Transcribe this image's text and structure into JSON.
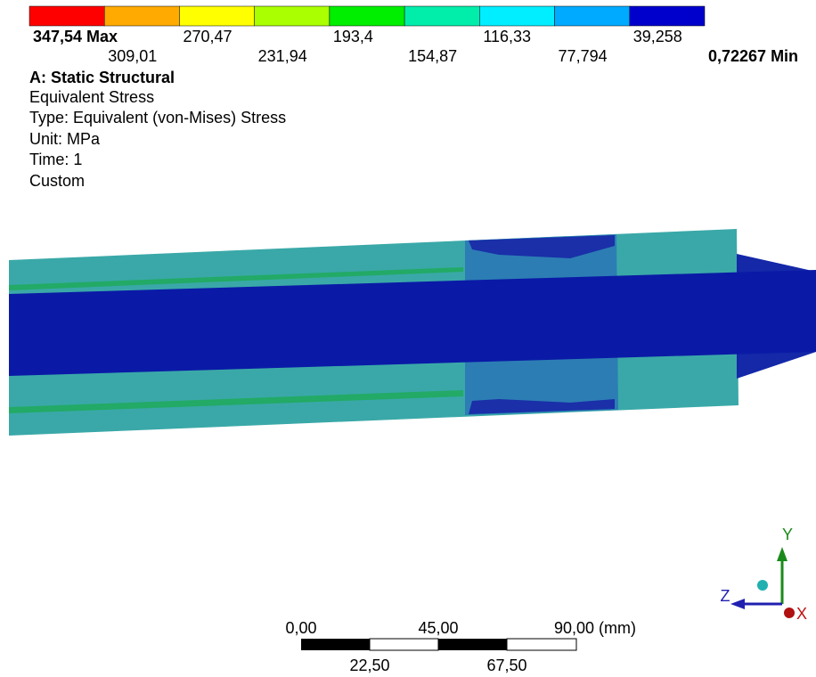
{
  "legend": {
    "colors": [
      "#ff0000",
      "#ffaa00",
      "#ffff00",
      "#aaff00",
      "#00ee00",
      "#00eeaa",
      "#00eeff",
      "#00aaff",
      "#0000cc"
    ],
    "labels": [
      "347,54 Max",
      "309,01",
      "270,47",
      "231,94",
      "193,4",
      "154,87",
      "116,33",
      "77,794",
      "39,258",
      "0,72267 Min"
    ]
  },
  "info": {
    "title": "A: Static Structural",
    "lines": [
      "Equivalent Stress",
      "Type: Equivalent (von-Mises) Stress",
      "Unit: MPa",
      "Time: 1",
      "Custom"
    ]
  },
  "scale_bar": {
    "labels": [
      "0,00",
      "22,50",
      "45,00",
      "67,50",
      "90,00 (mm)"
    ]
  },
  "triad": {
    "y": "Y",
    "z": "Z",
    "x": "X"
  }
}
